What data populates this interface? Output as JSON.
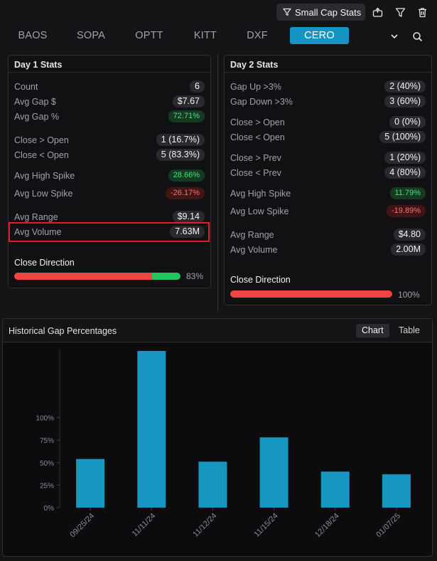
{
  "toolbar": {
    "preset_label": "Small Cap Stats"
  },
  "tabs": [
    {
      "label": "BAOS",
      "active": false
    },
    {
      "label": "SOPA",
      "active": false
    },
    {
      "label": "OPTT",
      "active": false
    },
    {
      "label": "KITT",
      "active": false
    },
    {
      "label": "DXF",
      "active": false
    },
    {
      "label": "CERO",
      "active": true
    }
  ],
  "day1": {
    "title": "Day 1 Stats",
    "rows": [
      {
        "label": "Count",
        "value": "6",
        "style": "neutral"
      },
      {
        "label": "Avg Gap $",
        "value": "$7.67",
        "style": "neutral"
      },
      {
        "label": "Avg Gap %",
        "value": "72.71%",
        "style": "green"
      },
      {
        "label": "Close > Open",
        "value": "1 (16.7%)",
        "style": "neutral"
      },
      {
        "label": "Close < Open",
        "value": "5 (83.3%)",
        "style": "neutral"
      },
      {
        "label": "Avg High Spike",
        "value": "28.66%",
        "style": "green"
      },
      {
        "label": "Avg Low Spike",
        "value": "-26.17%",
        "style": "red"
      },
      {
        "label": "Avg Range",
        "value": "$9.14",
        "style": "neutral"
      },
      {
        "label": "Avg Volume",
        "value": "7.63M",
        "style": "neutral"
      }
    ],
    "close_direction_label": "Close Direction",
    "close_direction_red_fraction": 0.83,
    "close_direction_pct": "83%"
  },
  "day2": {
    "title": "Day 2 Stats",
    "rows": [
      {
        "label": "Gap Up >3%",
        "value": "2 (40%)",
        "style": "neutral"
      },
      {
        "label": "Gap Down >3%",
        "value": "3 (60%)",
        "style": "neutral"
      },
      {
        "label": "Close > Open",
        "value": "0 (0%)",
        "style": "neutral"
      },
      {
        "label": "Close < Open",
        "value": "5 (100%)",
        "style": "neutral"
      },
      {
        "label": "Close > Prev",
        "value": "1 (20%)",
        "style": "neutral"
      },
      {
        "label": "Close < Prev",
        "value": "4 (80%)",
        "style": "neutral"
      },
      {
        "label": "Avg High Spike",
        "value": "11.79%",
        "style": "green"
      },
      {
        "label": "Avg Low Spike",
        "value": "-19.89%",
        "style": "red"
      },
      {
        "label": "Avg Range",
        "value": "$4.80",
        "style": "neutral"
      },
      {
        "label": "Avg Volume",
        "value": "2.00M",
        "style": "neutral"
      }
    ],
    "close_direction_label": "Close Direction",
    "close_direction_red_fraction": 1.0,
    "close_direction_pct": "100%"
  },
  "historical": {
    "title": "Historical Gap Percentages",
    "chart_btn": "Chart",
    "table_btn": "Table"
  },
  "colors": {
    "accent": "#1596c2",
    "bar": "#1597c0",
    "red": "#ef4444",
    "green": "#22c55e",
    "highlight": "#e11d2a"
  },
  "chart_data": {
    "type": "bar",
    "categories": [
      "09/25/24",
      "11/11/24",
      "11/12/24",
      "11/15/24",
      "12/18/24",
      "01/07/25"
    ],
    "values": [
      54,
      174,
      51,
      78,
      40,
      37
    ],
    "title": "Historical Gap Percentages",
    "xlabel": "",
    "ylabel": "",
    "yticks": [
      0,
      25,
      50,
      75,
      100
    ],
    "ytick_labels": [
      "0%",
      "25%",
      "50%",
      "75%",
      "100%"
    ],
    "grid": false,
    "legend": false
  }
}
